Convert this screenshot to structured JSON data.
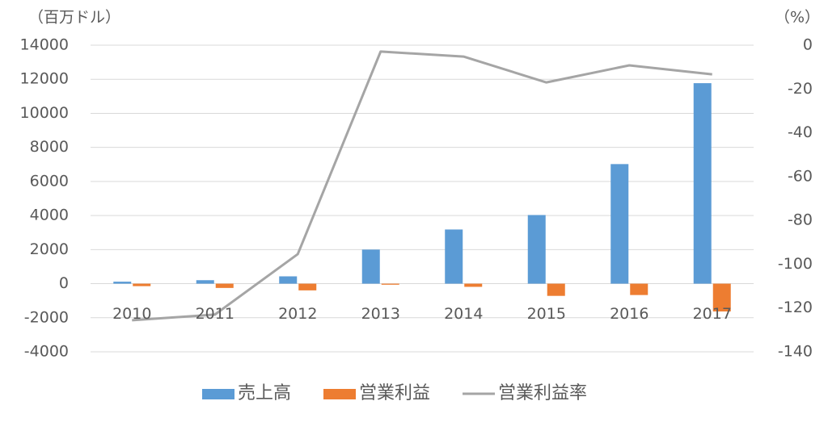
{
  "chart_data": {
    "type": "bar",
    "y_label": "（百万ドル）",
    "y2_label": "（%）",
    "categories": [
      "2010",
      "2011",
      "2012",
      "2013",
      "2014",
      "2015",
      "2016",
      "2017"
    ],
    "series": [
      {
        "name": "売上高",
        "type": "bar",
        "color": "#5b9bd5",
        "values": [
          117,
          204,
          430,
          2000,
          3180,
          4030,
          7020,
          11770
        ]
      },
      {
        "name": "営業利益",
        "type": "bar",
        "color": "#ed7d31",
        "values": [
          -146,
          -251,
          -394,
          -61,
          -186,
          -717,
          -667,
          -1632
        ]
      },
      {
        "name": "営業利益率",
        "type": "line",
        "axis": "y2",
        "color": "#a5a5a5",
        "values": [
          -125.6,
          -123,
          -95.4,
          -2.9,
          -5.2,
          -17,
          -9.2,
          -13.3
        ]
      }
    ],
    "ylim": [
      -4000,
      14000
    ],
    "yticks": [
      -4000,
      -2000,
      0,
      2000,
      4000,
      6000,
      8000,
      10000,
      12000,
      14000
    ],
    "y2lim": [
      -140,
      0
    ],
    "y2ticks": [
      -140,
      -120,
      -100,
      -80,
      -60,
      -40,
      -20,
      0
    ],
    "grid": true,
    "legend": "bottom"
  }
}
